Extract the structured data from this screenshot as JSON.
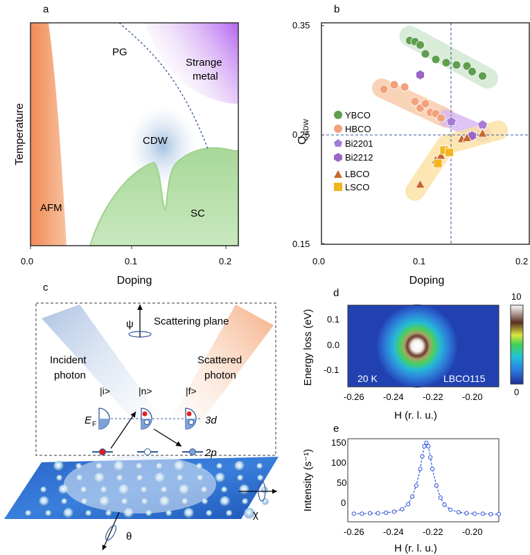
{
  "colors": {
    "axis": "#333333",
    "afm": "#f2a173",
    "sc": "#a9d89a",
    "cdw": "#a9c4e2",
    "strange_metal": "#b76ef0",
    "guide_line": "#2f5597",
    "ybco": "#5f9e4f",
    "hbco": "#f1a27c",
    "bi2201": "#a47cd6",
    "bi2212": "#9a66c8",
    "lbco": "#c8672a",
    "lsco": "#f2b51e",
    "trend_green": "#cfe6cf",
    "trend_orange": "#f8c8a6",
    "trend_purple": "#d6b6f2",
    "trend_yellow": "#fbe0a0",
    "fit_line": "#2b4fd6"
  },
  "panel_a": {
    "letter": "a",
    "xlabel": "Doping",
    "ylabel": "Temperature",
    "xticks": [
      "0.0",
      "0.1",
      "0.2"
    ],
    "regions": {
      "afm": "AFM",
      "pg": "PG",
      "strange_metal_line1": "Strange",
      "strange_metal_line2": "metal",
      "cdw": "CDW",
      "sc": "SC"
    }
  },
  "panel_b": {
    "letter": "b",
    "xlabel": "Doping",
    "ylabel_main": "Q",
    "ylabel_sub": "CDW",
    "xticks": [
      "0.0",
      "0.1",
      "0.2"
    ],
    "yticks": [
      "0.15",
      "0.25",
      "0.35"
    ],
    "legend": [
      "YBCO",
      "HBCO",
      "Bi2201",
      "Bi2212",
      "LBCO",
      "LSCO"
    ]
  },
  "panel_c": {
    "letter": "c",
    "psi": "ψ",
    "scattering_plane": "Scattering plane",
    "incident_line1": "Incident",
    "incident_line2": "photon",
    "scattered_line1": "Scattered",
    "scattered_line2": "photon",
    "state_i": "|i>",
    "state_n": "|n>",
    "state_f": "|f>",
    "ef_main": "E",
    "ef_sub": "F",
    "level_3d": "3d",
    "level_2p": "2p",
    "chi": "χ",
    "theta": "θ"
  },
  "panel_d": {
    "letter": "d",
    "ylabel": "Energy loss (eV)",
    "xlabel": "H (r. l. u.)",
    "xticks": [
      "-0.26",
      "-0.24",
      "-0.22",
      "-0.20"
    ],
    "yticks": [
      "0.1",
      "0.0",
      "-0.1"
    ],
    "temp_label": "20 K",
    "sample_label": "LBCO115",
    "colorbar_max": "10",
    "colorbar_min": "0"
  },
  "panel_e": {
    "letter": "e",
    "ylabel": "Intensity (s⁻¹)",
    "xlabel": "H (r. l. u.)",
    "xticks": [
      "-0.26",
      "-0.24",
      "-0.22",
      "-0.20"
    ],
    "yticks": [
      "150",
      "100",
      "50",
      "0"
    ]
  },
  "chart_data": [
    {
      "panel": "a",
      "type": "area",
      "title": "",
      "xlabel": "Doping",
      "ylabel": "Temperature",
      "xlim": [
        0.0,
        0.21
      ],
      "regions": [
        "AFM",
        "PG",
        "Strange metal",
        "CDW",
        "SC"
      ]
    },
    {
      "panel": "b",
      "type": "scatter",
      "title": "",
      "xlabel": "Doping",
      "ylabel": "QCDW",
      "xlim": [
        0.0,
        0.2
      ],
      "ylim": [
        0.15,
        0.35
      ],
      "guide_lines": {
        "x": 0.125,
        "y": 0.25
      },
      "series": [
        {
          "name": "YBCO",
          "x": [
            0.085,
            0.09,
            0.095,
            0.1,
            0.11,
            0.12,
            0.13,
            0.14,
            0.145,
            0.155
          ],
          "y": [
            0.334,
            0.333,
            0.33,
            0.322,
            0.317,
            0.314,
            0.312,
            0.311,
            0.306,
            0.302
          ]
        },
        {
          "name": "HBCO",
          "x": [
            0.06,
            0.07,
            0.08,
            0.09,
            0.095,
            0.1,
            0.105,
            0.11,
            0.115
          ],
          "y": [
            0.29,
            0.294,
            0.292,
            0.279,
            0.273,
            0.277,
            0.269,
            0.268,
            0.264
          ]
        },
        {
          "name": "Bi2201",
          "x": [
            0.125,
            0.155
          ],
          "y": [
            0.261,
            0.258
          ]
        },
        {
          "name": "Bi2212",
          "x": [
            0.095,
            0.145
          ],
          "y": [
            0.303,
            0.248
          ]
        },
        {
          "name": "LBCO",
          "x": [
            0.095,
            0.11,
            0.115,
            0.12,
            0.135,
            0.14,
            0.155
          ],
          "y": [
            0.204,
            0.226,
            0.23,
            0.235,
            0.245,
            0.246,
            0.25
          ]
        },
        {
          "name": "LSCO",
          "x": [
            0.112,
            0.118,
            0.123
          ],
          "y": [
            0.223,
            0.235,
            0.233
          ]
        }
      ]
    },
    {
      "panel": "d",
      "type": "heatmap",
      "title": "",
      "xlabel": "H (r. l. u.)",
      "ylabel": "Energy loss (eV)",
      "xlim": [
        -0.265,
        -0.19
      ],
      "ylim": [
        -0.15,
        0.15
      ],
      "zlim": [
        0,
        10
      ],
      "peak": {
        "x": -0.226,
        "y": 0.0,
        "value": 10
      }
    },
    {
      "panel": "e",
      "type": "line",
      "title": "",
      "xlabel": "H (r. l. u.)",
      "ylabel": "Intensity (s⁻¹)",
      "xlim": [
        -0.265,
        -0.19
      ],
      "ylim": [
        -10,
        155
      ],
      "series": [
        {
          "x": [
            -0.262,
            -0.258,
            -0.254,
            -0.25,
            -0.246,
            -0.242,
            -0.238,
            -0.235,
            -0.233,
            -0.231,
            -0.229,
            -0.228,
            -0.227,
            -0.226,
            -0.225,
            -0.224,
            -0.223,
            -0.221,
            -0.219,
            -0.217,
            -0.214,
            -0.21,
            -0.206,
            -0.202,
            -0.198,
            -0.194,
            -0.19
          ],
          "y": [
            6,
            6,
            7,
            7,
            8,
            10,
            15,
            25,
            40,
            62,
            95,
            120,
            140,
            147,
            140,
            118,
            95,
            62,
            38,
            24,
            14,
            9,
            7,
            6,
            6,
            5,
            5
          ]
        }
      ]
    }
  ]
}
